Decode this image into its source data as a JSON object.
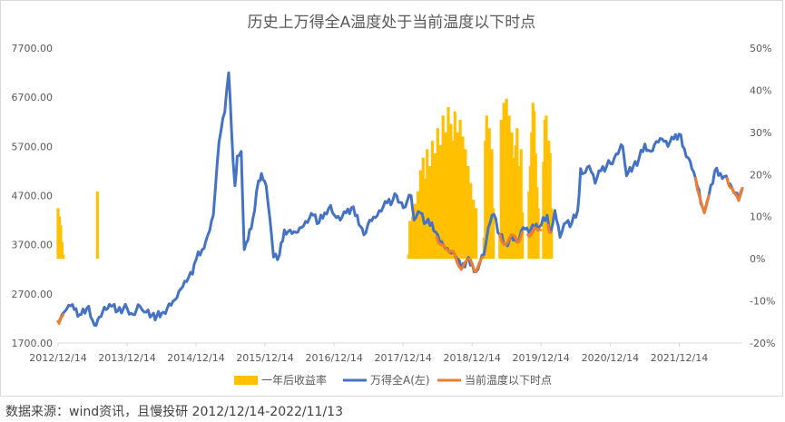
{
  "source_text": "数据来源：wind资讯，且慢投研   2012/12/14-2022/11/13",
  "chart_data": {
    "type": "line",
    "title": "历史上万得全A温度处于当前温度以下时点",
    "legend_position": "bottom",
    "grid": false,
    "x_tick_labels": [
      "2012/12/14",
      "2013/12/14",
      "2014/12/14",
      "2015/12/14",
      "2016/12/14",
      "2017/12/14",
      "2018/12/14",
      "2019/12/14",
      "2020/12/14",
      "2021/12/14"
    ],
    "x_range": [
      "2012-12-14",
      "2022-11-13"
    ],
    "left_axis": {
      "ylim": [
        1700,
        7700
      ],
      "ticks": [
        "1700.00",
        "2700.00",
        "3700.00",
        "4700.00",
        "5700.00",
        "6700.00",
        "7700.00"
      ]
    },
    "right_axis": {
      "ylim": [
        -20,
        50
      ],
      "ticks": [
        "-20%",
        "-10%",
        "0%",
        "10%",
        "20%",
        "30%",
        "40%",
        "50%"
      ]
    },
    "colors": {
      "returns": "#FFC000",
      "index": "#4472C4",
      "current_temp": "#ED7D31"
    },
    "series": [
      {
        "name": "一年后收益率",
        "type": "bar",
        "axis": "right",
        "points": [
          [
            "2012-12-14",
            12
          ],
          [
            "2012-12-21",
            10
          ],
          [
            "2012-12-28",
            8
          ],
          [
            "2013-01-04",
            4
          ],
          [
            "2013-01-11",
            1
          ],
          [
            "2013-07-10",
            16
          ],
          [
            "2018-01-12",
            1
          ],
          [
            "2018-01-19",
            9
          ],
          [
            "2018-01-26",
            5
          ],
          [
            "2018-02-02",
            10
          ],
          [
            "2018-02-09",
            4
          ],
          [
            "2018-02-16",
            13
          ],
          [
            "2018-02-23",
            7
          ],
          [
            "2018-03-02",
            16
          ],
          [
            "2018-03-09",
            9
          ],
          [
            "2018-03-16",
            21
          ],
          [
            "2018-03-23",
            11
          ],
          [
            "2018-03-30",
            24
          ],
          [
            "2018-04-06",
            8
          ],
          [
            "2018-04-13",
            19
          ],
          [
            "2018-04-20",
            26
          ],
          [
            "2018-04-27",
            12
          ],
          [
            "2018-05-04",
            22
          ],
          [
            "2018-05-11",
            17
          ],
          [
            "2018-05-18",
            28
          ],
          [
            "2018-05-25",
            14
          ],
          [
            "2018-06-01",
            25
          ],
          [
            "2018-06-08",
            20
          ],
          [
            "2018-06-15",
            31
          ],
          [
            "2018-06-22",
            16
          ],
          [
            "2018-06-29",
            27
          ],
          [
            "2018-07-06",
            22
          ],
          [
            "2018-07-13",
            34
          ],
          [
            "2018-07-20",
            19
          ],
          [
            "2018-07-27",
            30
          ],
          [
            "2018-08-03",
            25
          ],
          [
            "2018-08-10",
            36
          ],
          [
            "2018-08-17",
            21
          ],
          [
            "2018-08-24",
            32
          ],
          [
            "2018-08-31",
            28
          ],
          [
            "2018-09-07",
            24
          ],
          [
            "2018-09-14",
            35
          ],
          [
            "2018-09-21",
            20
          ],
          [
            "2018-09-28",
            30
          ],
          [
            "2018-10-05",
            26
          ],
          [
            "2018-10-12",
            33
          ],
          [
            "2018-10-19",
            22
          ],
          [
            "2018-10-26",
            29
          ],
          [
            "2018-11-02",
            18
          ],
          [
            "2018-11-09",
            26
          ],
          [
            "2018-11-16",
            15
          ],
          [
            "2018-11-23",
            22
          ],
          [
            "2018-11-30",
            12
          ],
          [
            "2018-12-07",
            18
          ],
          [
            "2018-12-14",
            9
          ],
          [
            "2018-12-21",
            14
          ],
          [
            "2018-12-28",
            7
          ],
          [
            "2019-01-04",
            12
          ],
          [
            "2019-02-15",
            5
          ],
          [
            "2019-02-22",
            28
          ],
          [
            "2019-03-01",
            34
          ],
          [
            "2019-03-08",
            22
          ],
          [
            "2019-03-15",
            31
          ],
          [
            "2019-03-22",
            18
          ],
          [
            "2019-03-29",
            26
          ],
          [
            "2019-04-05",
            12
          ],
          [
            "2019-05-10",
            6
          ],
          [
            "2019-05-17",
            33
          ],
          [
            "2019-05-24",
            25
          ],
          [
            "2019-05-31",
            37
          ],
          [
            "2019-06-07",
            21
          ],
          [
            "2019-06-14",
            38
          ],
          [
            "2019-06-21",
            28
          ],
          [
            "2019-06-28",
            34
          ],
          [
            "2019-07-05",
            19
          ],
          [
            "2019-07-12",
            30
          ],
          [
            "2019-07-19",
            24
          ],
          [
            "2019-07-26",
            13
          ],
          [
            "2019-08-02",
            27
          ],
          [
            "2019-08-09",
            31
          ],
          [
            "2019-08-16",
            22
          ],
          [
            "2019-08-23",
            17
          ],
          [
            "2019-08-30",
            26
          ],
          [
            "2019-09-06",
            11
          ],
          [
            "2019-10-11",
            16
          ],
          [
            "2019-10-18",
            22
          ],
          [
            "2019-10-25",
            30
          ],
          [
            "2019-11-01",
            37
          ],
          [
            "2019-11-08",
            35
          ],
          [
            "2019-11-15",
            25
          ],
          [
            "2019-11-22",
            17
          ],
          [
            "2019-11-29",
            12
          ],
          [
            "2019-12-27",
            23
          ],
          [
            "2020-01-03",
            33
          ],
          [
            "2020-01-10",
            34
          ],
          [
            "2020-01-17",
            21
          ],
          [
            "2020-01-24",
            28
          ],
          [
            "2020-01-31",
            25
          ],
          [
            "2020-02-07",
            12
          ]
        ]
      },
      {
        "name": "万得全A(左)",
        "type": "line",
        "axis": "left",
        "points": [
          [
            "2012-12-14",
            2140
          ],
          [
            "2013-01-15",
            2330
          ],
          [
            "2013-02-08",
            2470
          ],
          [
            "2013-03-10",
            2380
          ],
          [
            "2013-04-15",
            2280
          ],
          [
            "2013-05-25",
            2450
          ],
          [
            "2013-06-25",
            2060
          ],
          [
            "2013-07-20",
            2230
          ],
          [
            "2013-08-25",
            2380
          ],
          [
            "2013-09-20",
            2450
          ],
          [
            "2013-10-25",
            2350
          ],
          [
            "2013-11-25",
            2400
          ],
          [
            "2013-12-15",
            2400
          ],
          [
            "2014-01-15",
            2280
          ],
          [
            "2014-02-20",
            2450
          ],
          [
            "2014-03-15",
            2330
          ],
          [
            "2014-04-25",
            2270
          ],
          [
            "2014-05-20",
            2250
          ],
          [
            "2014-06-25",
            2330
          ],
          [
            "2014-07-25",
            2500
          ],
          [
            "2014-08-25",
            2580
          ],
          [
            "2014-09-25",
            2800
          ],
          [
            "2014-10-25",
            2950
          ],
          [
            "2014-11-25",
            3100
          ],
          [
            "2014-12-15",
            3400
          ],
          [
            "2015-01-15",
            3600
          ],
          [
            "2015-02-15",
            3900
          ],
          [
            "2015-03-15",
            4300
          ],
          [
            "2015-04-15",
            5800
          ],
          [
            "2015-05-15",
            6400
          ],
          [
            "2015-06-05",
            7200
          ],
          [
            "2015-06-20",
            6000
          ],
          [
            "2015-07-08",
            4900
          ],
          [
            "2015-07-20",
            5500
          ],
          [
            "2015-08-10",
            5600
          ],
          [
            "2015-08-26",
            3600
          ],
          [
            "2015-09-15",
            3800
          ],
          [
            "2015-10-20",
            4400
          ],
          [
            "2015-11-10",
            5000
          ],
          [
            "2015-11-25",
            5150
          ],
          [
            "2015-12-20",
            4900
          ],
          [
            "2016-01-10",
            4200
          ],
          [
            "2016-01-28",
            3450
          ],
          [
            "2016-02-29",
            3500
          ],
          [
            "2016-03-25",
            4000
          ],
          [
            "2016-04-25",
            4000
          ],
          [
            "2016-05-25",
            3950
          ],
          [
            "2016-06-25",
            4050
          ],
          [
            "2016-07-25",
            4150
          ],
          [
            "2016-08-25",
            4300
          ],
          [
            "2016-09-25",
            4150
          ],
          [
            "2016-10-25",
            4350
          ],
          [
            "2016-11-25",
            4500
          ],
          [
            "2016-12-15",
            4300
          ],
          [
            "2017-01-15",
            4200
          ],
          [
            "2017-02-15",
            4350
          ],
          [
            "2017-03-15",
            4450
          ],
          [
            "2017-04-15",
            4300
          ],
          [
            "2017-05-20",
            3900
          ],
          [
            "2017-06-20",
            4200
          ],
          [
            "2017-07-20",
            4250
          ],
          [
            "2017-08-20",
            4380
          ],
          [
            "2017-09-20",
            4550
          ],
          [
            "2017-10-20",
            4600
          ],
          [
            "2017-11-10",
            4700
          ],
          [
            "2017-12-15",
            4450
          ],
          [
            "2018-01-25",
            4700
          ],
          [
            "2018-02-10",
            4200
          ],
          [
            "2018-03-15",
            4350
          ],
          [
            "2018-04-15",
            4150
          ],
          [
            "2018-05-15",
            4150
          ],
          [
            "2018-06-15",
            3900
          ],
          [
            "2018-07-15",
            3700
          ],
          [
            "2018-08-15",
            3550
          ],
          [
            "2018-09-15",
            3480
          ],
          [
            "2018-10-18",
            3200
          ],
          [
            "2018-11-15",
            3380
          ],
          [
            "2018-12-15",
            3300
          ],
          [
            "2019-01-03",
            3150
          ],
          [
            "2019-02-15",
            3500
          ],
          [
            "2019-03-10",
            4050
          ],
          [
            "2019-04-08",
            4320
          ],
          [
            "2019-05-10",
            3900
          ],
          [
            "2019-06-10",
            3700
          ],
          [
            "2019-07-10",
            3900
          ],
          [
            "2019-08-10",
            3750
          ],
          [
            "2019-09-10",
            4050
          ],
          [
            "2019-10-10",
            3950
          ],
          [
            "2019-11-10",
            4050
          ],
          [
            "2019-12-15",
            4100
          ],
          [
            "2020-01-15",
            4300
          ],
          [
            "2020-02-03",
            3950
          ],
          [
            "2020-02-25",
            4400
          ],
          [
            "2020-03-23",
            3850
          ],
          [
            "2020-04-25",
            4150
          ],
          [
            "2020-05-25",
            4150
          ],
          [
            "2020-06-25",
            4400
          ],
          [
            "2020-07-10",
            5250
          ],
          [
            "2020-07-25",
            5150
          ],
          [
            "2020-08-25",
            5300
          ],
          [
            "2020-09-25",
            4950
          ],
          [
            "2020-10-25",
            5200
          ],
          [
            "2020-11-25",
            5300
          ],
          [
            "2020-12-15",
            5350
          ],
          [
            "2021-01-15",
            5550
          ],
          [
            "2021-02-18",
            5700
          ],
          [
            "2021-03-10",
            5100
          ],
          [
            "2021-04-15",
            5300
          ],
          [
            "2021-05-15",
            5450
          ],
          [
            "2021-06-15",
            5750
          ],
          [
            "2021-07-15",
            5600
          ],
          [
            "2021-08-15",
            5800
          ],
          [
            "2021-09-15",
            5850
          ],
          [
            "2021-10-15",
            5700
          ],
          [
            "2021-11-15",
            5850
          ],
          [
            "2021-12-13",
            5950
          ],
          [
            "2022-01-10",
            5650
          ],
          [
            "2022-02-10",
            5400
          ],
          [
            "2022-03-10",
            5050
          ],
          [
            "2022-04-26",
            4350
          ],
          [
            "2022-05-20",
            4700
          ],
          [
            "2022-06-20",
            5200
          ],
          [
            "2022-07-20",
            5150
          ],
          [
            "2022-08-20",
            5100
          ],
          [
            "2022-09-20",
            4850
          ],
          [
            "2022-10-25",
            4600
          ],
          [
            "2022-11-13",
            4850
          ]
        ]
      },
      {
        "name": "当前温度以下时点",
        "type": "line",
        "axis": "left",
        "segments": [
          [
            [
              "2012-12-14",
              2140
            ],
            [
              "2012-12-25",
              2200
            ],
            [
              "2013-01-10",
              2280
            ]
          ],
          [
            [
              "2018-06-10",
              3850
            ],
            [
              "2018-07-15",
              3700
            ],
            [
              "2018-08-15",
              3550
            ],
            [
              "2018-09-15",
              3480
            ],
            [
              "2018-10-18",
              3200
            ],
            [
              "2018-11-15",
              3380
            ],
            [
              "2018-12-15",
              3300
            ],
            [
              "2019-01-03",
              3150
            ],
            [
              "2019-02-10",
              3450
            ]
          ],
          [
            [
              "2019-05-10",
              3900
            ],
            [
              "2019-06-10",
              3700
            ],
            [
              "2019-07-10",
              3900
            ],
            [
              "2019-08-10",
              3750
            ],
            [
              "2019-09-05",
              3950
            ]
          ],
          [
            [
              "2019-10-05",
              3900
            ],
            [
              "2019-11-10",
              4050
            ],
            [
              "2019-12-10",
              4000
            ]
          ],
          [
            [
              "2020-01-20",
              4100
            ],
            [
              "2020-02-03",
              3950
            ]
          ],
          [
            [
              "2022-03-10",
              5050
            ],
            [
              "2022-04-26",
              4350
            ],
            [
              "2022-05-20",
              4700
            ]
          ],
          [
            [
              "2022-08-25",
              5050
            ],
            [
              "2022-09-20",
              4850
            ],
            [
              "2022-10-25",
              4600
            ],
            [
              "2022-11-13",
              4850
            ]
          ]
        ]
      }
    ]
  }
}
